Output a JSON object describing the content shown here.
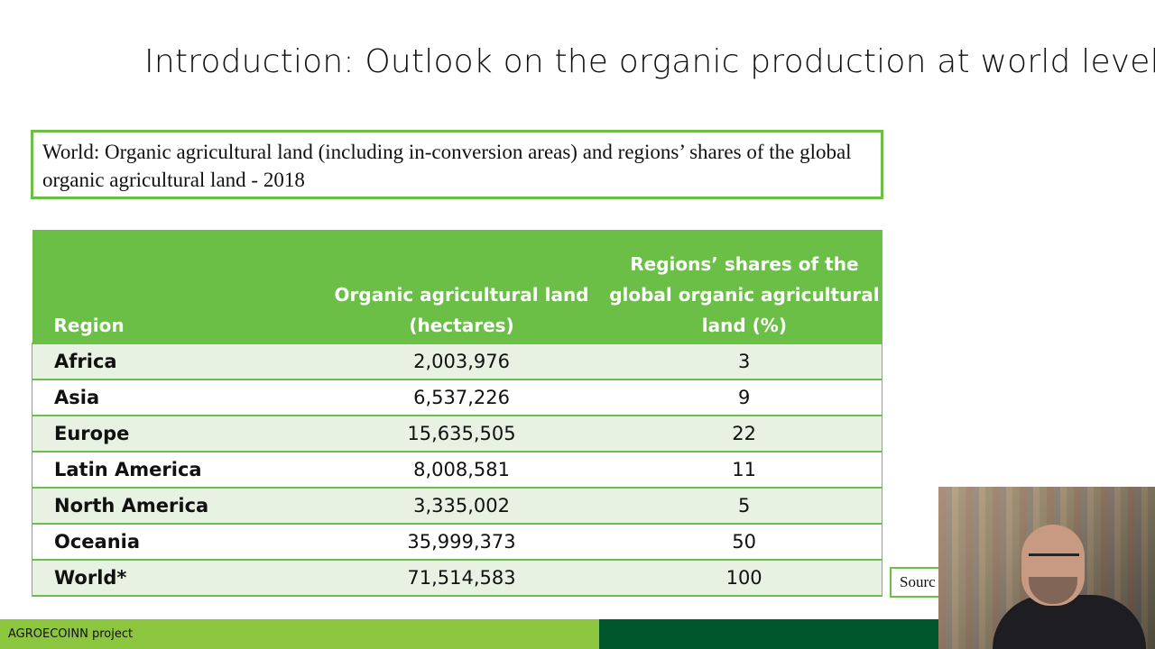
{
  "slide": {
    "title": "Introduction: Outlook on the organic production at world level"
  },
  "caption": {
    "text": "World: Organic agricultural land (including in-conversion areas) and regions’ shares of the global organic agricultural land - 2018"
  },
  "table": {
    "headers": {
      "region": "Region",
      "land": "Organic agricultural land (hectares)",
      "share": "Regions’ shares of the global organic agricultural land (%)"
    },
    "rows": [
      {
        "region": "Africa",
        "land": "2,003,976",
        "share": "3"
      },
      {
        "region": "Asia",
        "land": "6,537,226",
        "share": "9"
      },
      {
        "region": "Europe",
        "land": "15,635,505",
        "share": "22"
      },
      {
        "region": "Latin America",
        "land": "8,008,581",
        "share": "11"
      },
      {
        "region": "North America",
        "land": "3,335,002",
        "share": "5"
      },
      {
        "region": "Oceania",
        "land": "35,999,373",
        "share": "50"
      },
      {
        "region": "World*",
        "land": "71,514,583",
        "share": "100"
      }
    ]
  },
  "source": {
    "text": "Sourc"
  },
  "footer": {
    "project": "AGROECOINN project"
  },
  "colors": {
    "accent_green": "#6bbf47",
    "footer_light_green": "#8cc63f",
    "footer_dark_green": "#00572c",
    "row_tint": "#e8f2e3"
  }
}
